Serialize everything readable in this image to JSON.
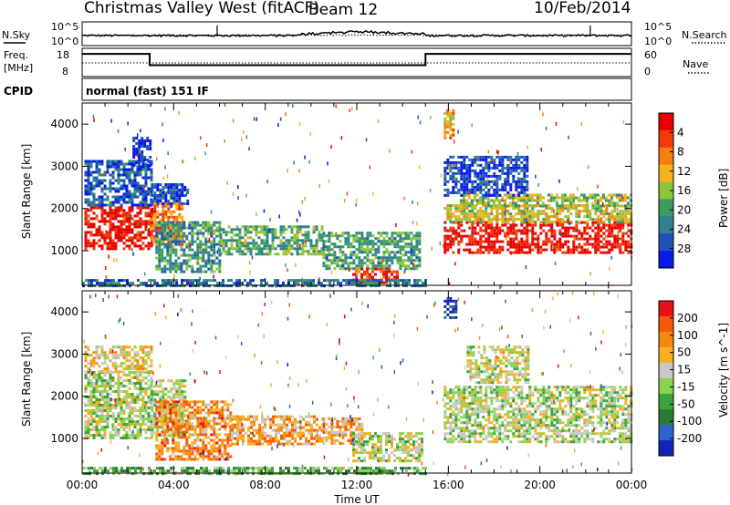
{
  "header": {
    "title": "Christmas Valley West (fitACF)",
    "beam": "Beam 12",
    "date": "10/Feb/2014"
  },
  "chart_data": [
    {
      "type": "line",
      "panel": "noise",
      "labels_left": [
        "N.Sky",
        "10^5",
        "10^0"
      ],
      "labels_right": [
        "10^5",
        "10^0",
        "N.Search"
      ],
      "x_range_hours": [
        0,
        24
      ],
      "series": [
        {
          "name": "N.Sky",
          "style": "solid"
        },
        {
          "name": "N.Search",
          "style": "dotted"
        }
      ]
    },
    {
      "type": "line",
      "panel": "frequency",
      "ylabel_left": [
        "Freq.",
        "[MHz]"
      ],
      "yticks_left": [
        "18",
        "8"
      ],
      "ylabel_right": "Nave",
      "yticks_right": [
        "60",
        "0"
      ],
      "series": [
        {
          "name": "Freq.",
          "style": "solid",
          "points": [
            [
              0,
              17
            ],
            [
              2.95,
              17
            ],
            [
              2.95,
              13
            ],
            [
              15,
              13
            ],
            [
              15,
              17
            ],
            [
              24,
              17
            ]
          ]
        },
        {
          "name": "Nave",
          "style": "dotted",
          "level": 13.8
        }
      ]
    },
    {
      "type": "text",
      "panel": "cpid",
      "label": "CPID",
      "value": "normal (fast) 151 IF"
    },
    {
      "type": "heatmap",
      "panel": "power",
      "ylabel": "Slant Range [km]",
      "yticks": [
        1000,
        2000,
        3000,
        4000
      ],
      "ylim": [
        180,
        4500
      ],
      "colorbar_label": "Power [dB]",
      "colorbar_ticks": [
        "4",
        "8",
        "12",
        "16",
        "20",
        "24",
        "28"
      ],
      "colorbar_colors": [
        "#0a18e8",
        "#1e52b8",
        "#2f7f90",
        "#3c9c5f",
        "#8cc63f",
        "#f5b21a",
        "#f57d12",
        "#f03a0a",
        "#e80000"
      ],
      "regions": [
        {
          "t0": 0.1,
          "t1": 3.0,
          "r0": 1050,
          "r1": 2050,
          "level": 0.95
        },
        {
          "t0": 0.1,
          "t1": 3.0,
          "r0": 2050,
          "r1": 3150,
          "level": 0.18
        },
        {
          "t0": 2.2,
          "t1": 3.0,
          "r0": 3050,
          "r1": 3700,
          "level": 0.05
        },
        {
          "t0": 3.0,
          "t1": 4.4,
          "r0": 1150,
          "r1": 2150,
          "level": 0.75
        },
        {
          "t0": 3.0,
          "t1": 4.6,
          "r0": 2100,
          "r1": 2600,
          "level": 0.15
        },
        {
          "t0": 3.2,
          "t1": 6.0,
          "r0": 500,
          "r1": 1700,
          "level": 0.35
        },
        {
          "t0": 6.0,
          "t1": 10.5,
          "r0": 900,
          "r1": 1600,
          "level": 0.4
        },
        {
          "t0": 10.5,
          "t1": 14.8,
          "r0": 550,
          "r1": 1450,
          "level": 0.38
        },
        {
          "t0": 11.8,
          "t1": 13.8,
          "r0": 250,
          "r1": 600,
          "level": 0.88
        },
        {
          "t0": 0.0,
          "t1": 15.0,
          "r0": 180,
          "r1": 330,
          "level": 0.25
        },
        {
          "t0": 15.8,
          "t1": 24.0,
          "r0": 950,
          "r1": 1700,
          "level": 0.95
        },
        {
          "t0": 15.8,
          "t1": 24.0,
          "r0": 1700,
          "r1": 2100,
          "level": 0.55
        },
        {
          "t0": 16.5,
          "t1": 24.0,
          "r0": 2050,
          "r1": 2350,
          "level": 0.5
        },
        {
          "t0": 15.8,
          "t1": 19.5,
          "r0": 2300,
          "r1": 3250,
          "level": 0.12
        },
        {
          "t0": 15.8,
          "t1": 16.2,
          "r0": 3700,
          "r1": 4350,
          "level": 0.65
        }
      ]
    },
    {
      "type": "heatmap",
      "panel": "velocity",
      "ylabel": "Slant Range [km]",
      "yticks": [
        1000,
        2000,
        3000,
        4000
      ],
      "ylim": [
        180,
        4500
      ],
      "xlabel": "Time UT",
      "xticks": [
        "00:00",
        "04:00",
        "08:00",
        "12:00",
        "16:00",
        "20:00",
        "00:00"
      ],
      "colorbar_label": "Velocity [m s^-1]",
      "colorbar_ticks": [
        "200",
        "100",
        "50",
        "15",
        "-15",
        "-50",
        "-100",
        "-200"
      ],
      "colorbar_colors": [
        "#1522b8",
        "#2c63c8",
        "#2a7a33",
        "#3aa53c",
        "#88d44f",
        "#c8c8c8",
        "#f8b020",
        "#f58a10",
        "#f25a08",
        "#e81010"
      ],
      "regions": [
        {
          "t0": 0.1,
          "t1": 3.0,
          "r0": 1000,
          "r1": 2600,
          "level": 0.5
        },
        {
          "t0": 0.1,
          "t1": 3.0,
          "r0": 2600,
          "r1": 3200,
          "level": 0.6
        },
        {
          "t0": 3.0,
          "t1": 4.5,
          "r0": 1050,
          "r1": 2400,
          "level": 0.5
        },
        {
          "t0": 3.2,
          "t1": 6.5,
          "r0": 500,
          "r1": 1900,
          "level": 0.75
        },
        {
          "t0": 6.5,
          "t1": 10.5,
          "r0": 900,
          "r1": 1550,
          "level": 0.7
        },
        {
          "t0": 10.5,
          "t1": 12.2,
          "r0": 900,
          "r1": 1500,
          "level": 0.68
        },
        {
          "t0": 11.8,
          "t1": 14.8,
          "r0": 500,
          "r1": 1150,
          "level": 0.52
        },
        {
          "t0": 15.8,
          "t1": 24.0,
          "r0": 900,
          "r1": 2250,
          "level": 0.5
        },
        {
          "t0": 16.8,
          "t1": 19.5,
          "r0": 2300,
          "r1": 3200,
          "level": 0.55
        },
        {
          "t0": 15.8,
          "t1": 16.3,
          "r0": 3850,
          "r1": 4350,
          "level": 0.05
        },
        {
          "t0": 0.0,
          "t1": 15.0,
          "r0": 180,
          "r1": 330,
          "level": 0.38
        }
      ]
    }
  ]
}
